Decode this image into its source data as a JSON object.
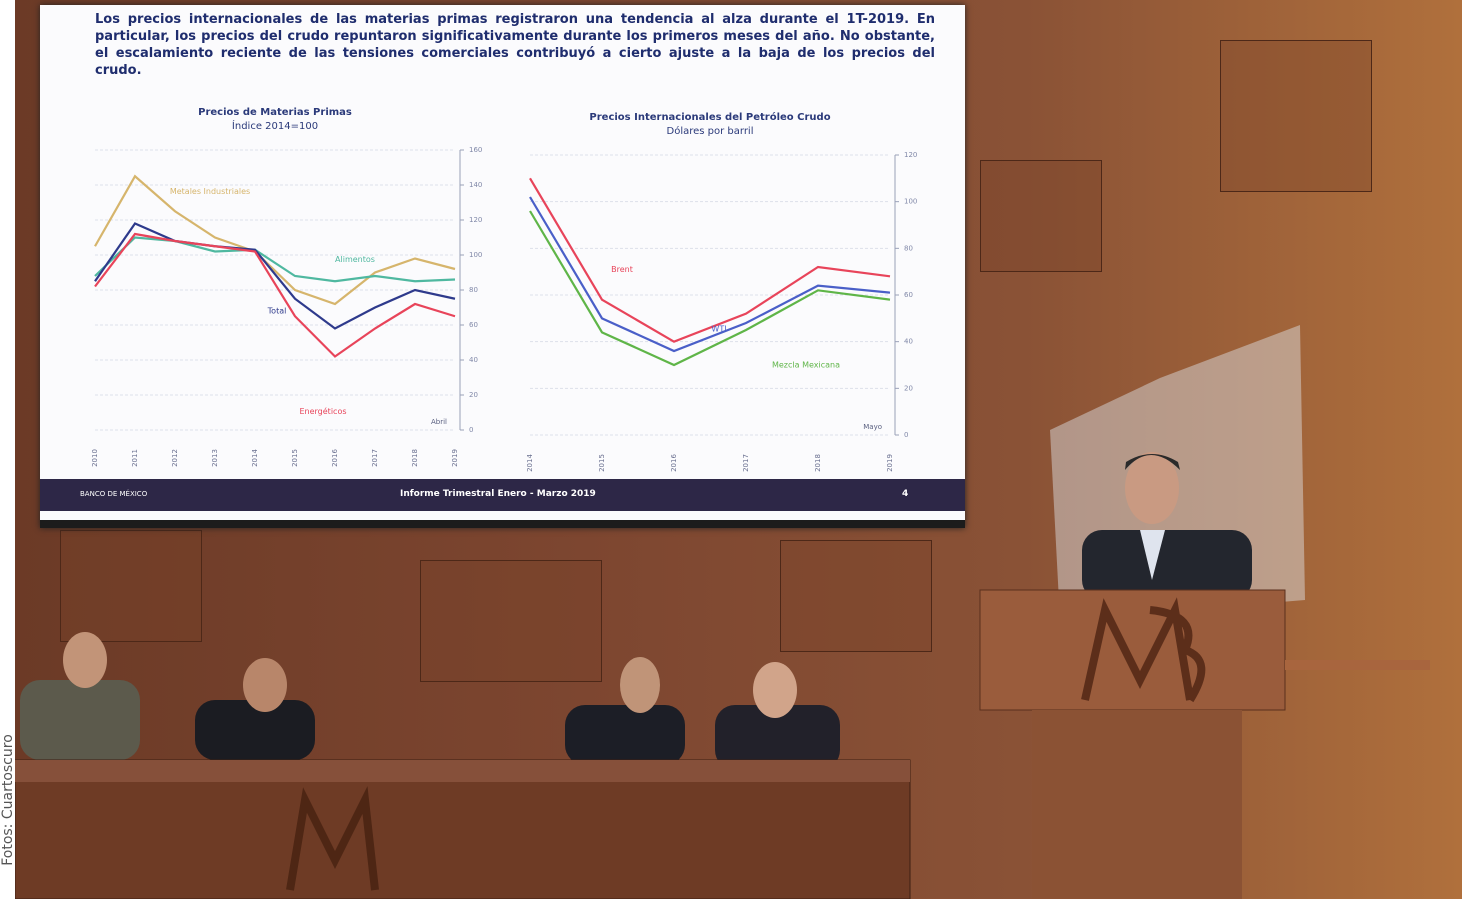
{
  "slide": {
    "text": "Los precios internacionales de las materias primas registraron una tendencia al alza durante el 1T-2019. En particular, los precios del crudo repuntaron significativamente durante los primeros meses del año. No obstante, el escalamiento reciente de las tensiones comerciales contribuyó a cierto ajuste a la baja de los precios del crudo.",
    "footer": {
      "logo": "BANCO DE MÉXICO",
      "title": "Informe Trimestral Enero - Marzo 2019",
      "page": "4"
    }
  },
  "chart_data": [
    {
      "type": "line",
      "title": "Precios de Materias Primas",
      "subtitle": "Índice 2014=100",
      "categories": [
        "2010",
        "2011",
        "2012",
        "2013",
        "2014",
        "2015",
        "2016",
        "2017",
        "2018",
        "2019"
      ],
      "series": [
        {
          "name": "Metales Industriales",
          "color": "#d6b56c",
          "values": [
            105,
            145,
            125,
            110,
            102,
            80,
            72,
            90,
            98,
            92
          ]
        },
        {
          "name": "Alimentos",
          "color": "#4fb8a0",
          "values": [
            88,
            110,
            108,
            102,
            103,
            88,
            85,
            88,
            85,
            86
          ]
        },
        {
          "name": "Total",
          "color": "#2e3a8c",
          "values": [
            85,
            118,
            108,
            105,
            103,
            75,
            58,
            70,
            80,
            75
          ]
        },
        {
          "name": "Energéticos",
          "color": "#e8445a",
          "values": [
            82,
            112,
            108,
            105,
            102,
            65,
            42,
            58,
            72,
            65
          ]
        }
      ],
      "ylim": [
        0,
        160
      ],
      "yticks": [
        0,
        20,
        40,
        60,
        80,
        100,
        120,
        140,
        160
      ],
      "grid": true,
      "annotation": "Abril"
    },
    {
      "type": "line",
      "title": "Precios Internacionales del Petróleo Crudo",
      "subtitle": "Dólares por barril",
      "categories": [
        "2014",
        "2015",
        "2016",
        "2017",
        "2018",
        "2019"
      ],
      "series": [
        {
          "name": "Brent",
          "color": "#e8445a",
          "values": [
            110,
            58,
            40,
            52,
            72,
            68
          ]
        },
        {
          "name": "WTI",
          "color": "#4a5fc8",
          "values": [
            102,
            50,
            36,
            48,
            64,
            61
          ]
        },
        {
          "name": "Mezcla Mexicana",
          "color": "#5fb548",
          "values": [
            96,
            44,
            30,
            45,
            62,
            58
          ]
        }
      ],
      "ylim": [
        0,
        120
      ],
      "yticks": [
        0,
        20,
        40,
        60,
        80,
        100,
        120
      ],
      "grid": true,
      "annotation": "Mayo"
    }
  ],
  "credit": "Fotos: Cuartoscuro"
}
